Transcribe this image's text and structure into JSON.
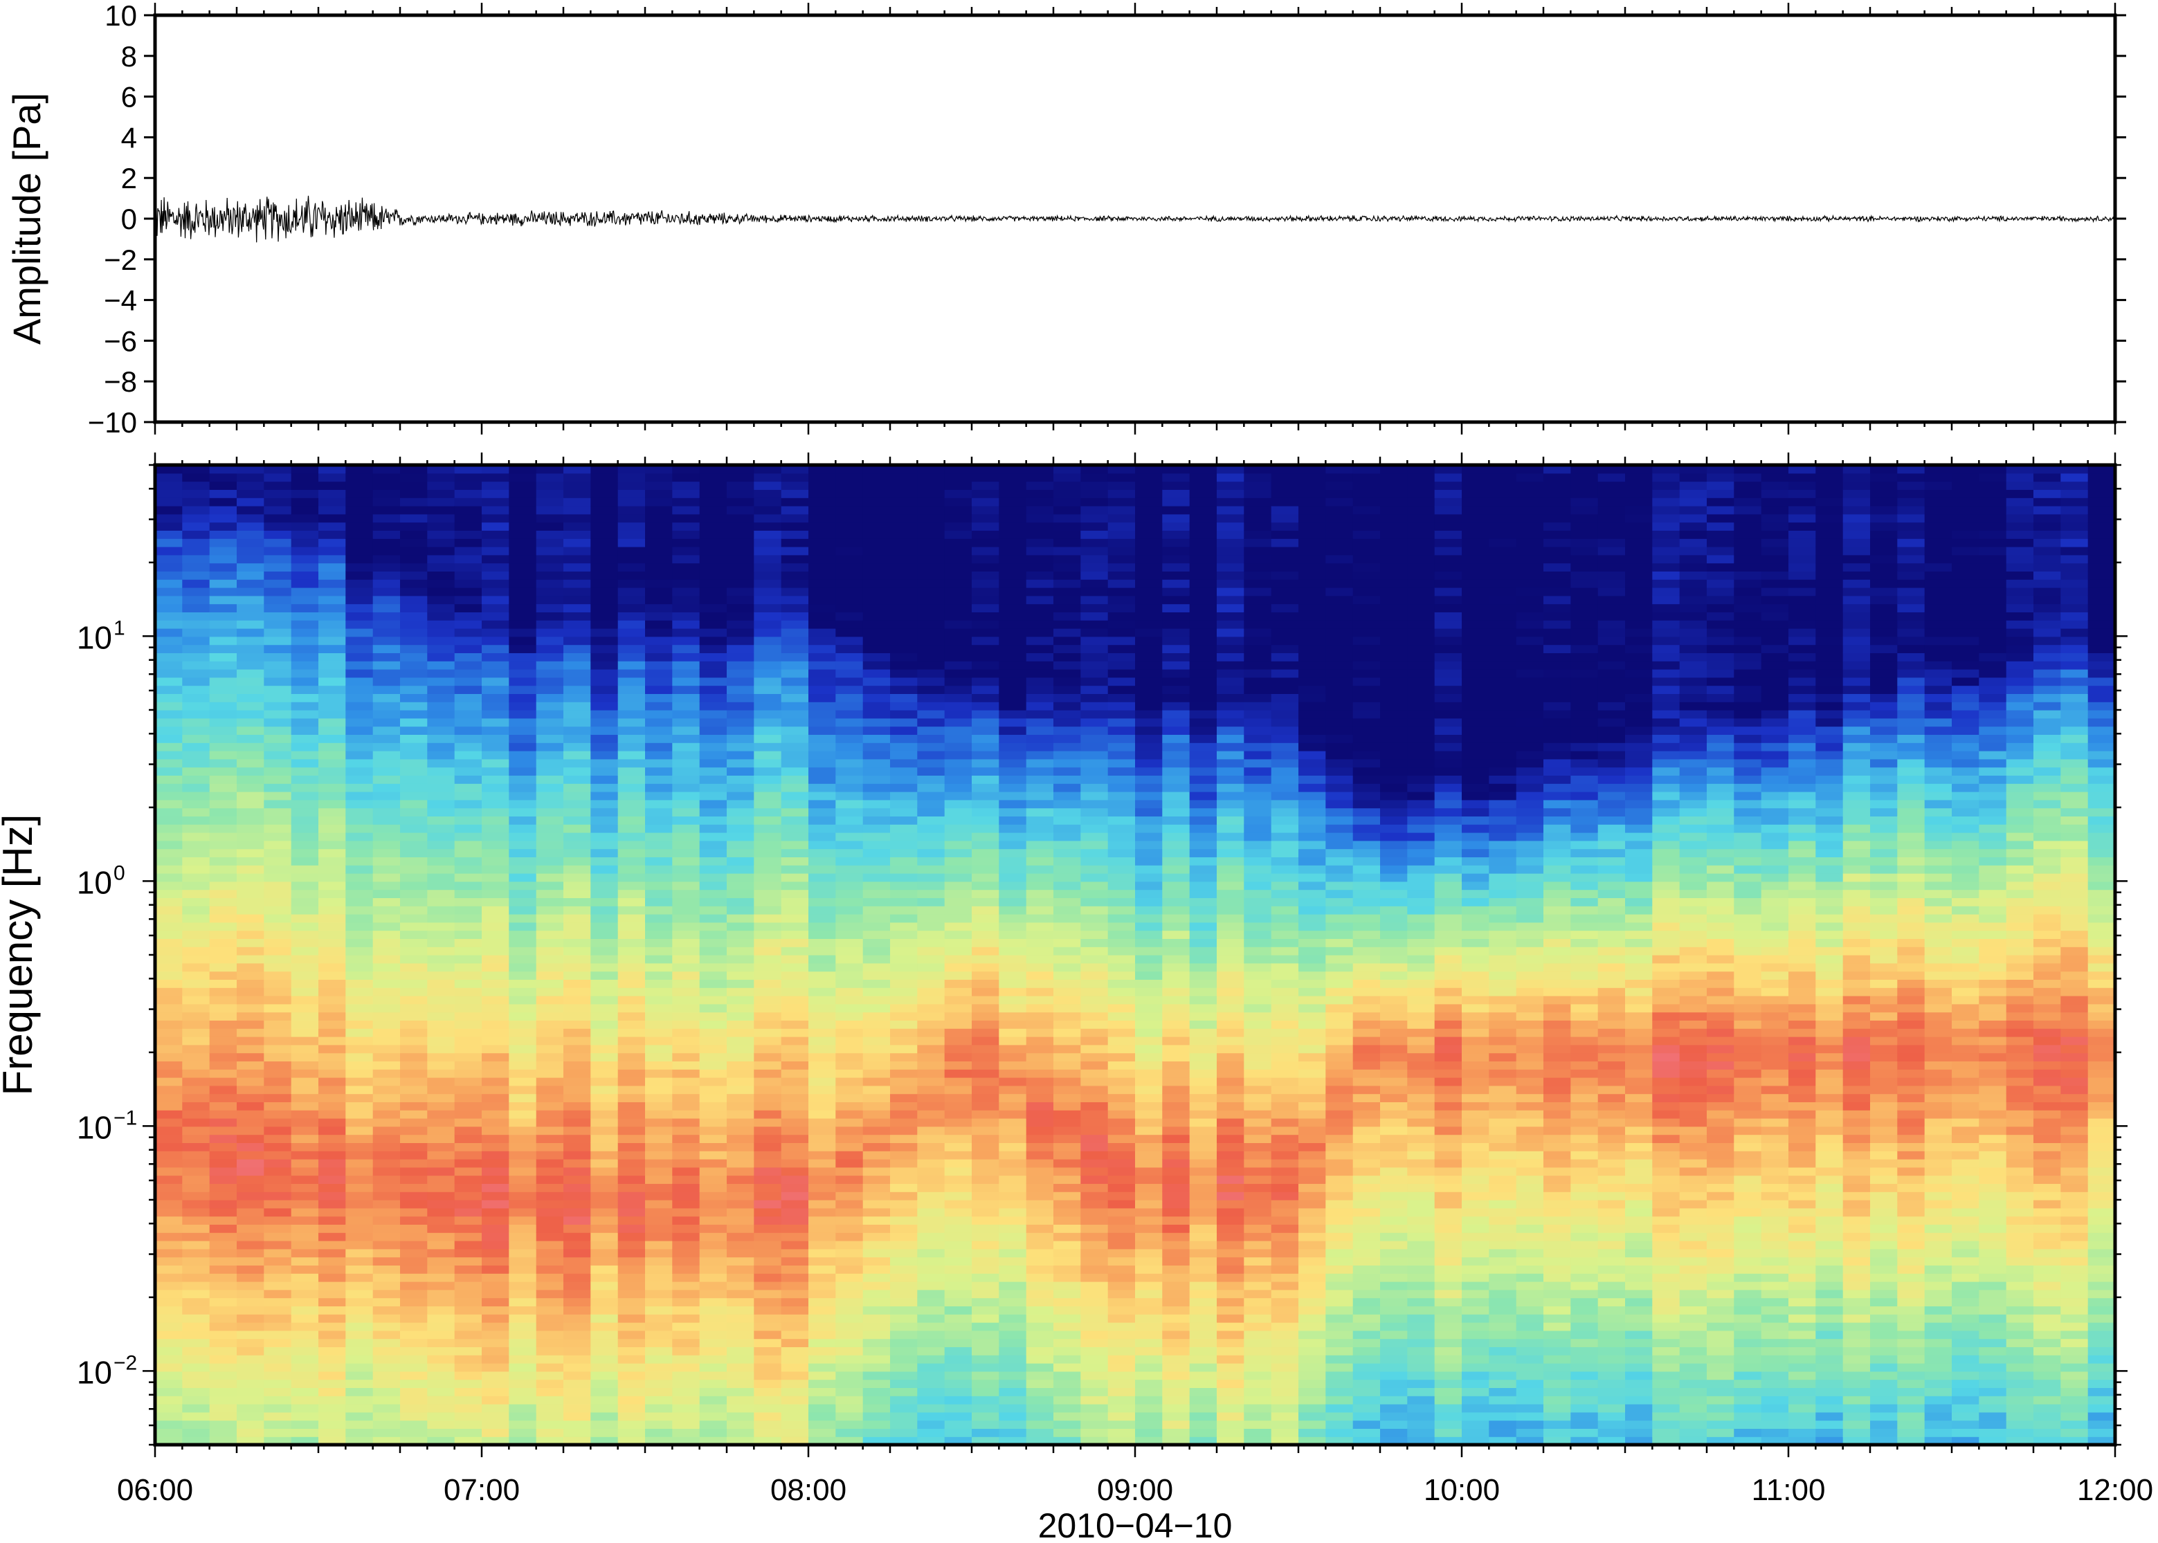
{
  "chart_data": [
    {
      "type": "line",
      "ylabel": "Amplitude [Pa]",
      "ylim": [
        -10,
        10
      ],
      "yticks": [
        -10,
        -8,
        -6,
        -4,
        -2,
        0,
        2,
        4,
        6,
        8,
        10
      ],
      "ytick_labels": [
        "−10",
        "−8",
        "−6",
        "−4",
        "−2",
        "0",
        "2",
        "4",
        "6",
        "8",
        "10"
      ],
      "xlim": [
        "06:00",
        "12:00"
      ],
      "grid": false,
      "envelope": {
        "time": [
          "06:00",
          "06:10",
          "06:20",
          "06:30",
          "06:40",
          "06:45",
          "06:50",
          "07:00",
          "07:10",
          "07:20",
          "07:30",
          "07:40",
          "07:50",
          "08:00",
          "08:20",
          "08:40",
          "09:00",
          "09:20",
          "09:40",
          "10:00",
          "10:20",
          "10:40",
          "11:00",
          "11:20",
          "11:40",
          "12:00"
        ],
        "amplitude": [
          1.4,
          1.2,
          1.3,
          1.4,
          1.0,
          0.5,
          0.25,
          0.35,
          0.45,
          0.45,
          0.5,
          0.4,
          0.25,
          0.2,
          0.18,
          0.15,
          0.15,
          0.15,
          0.18,
          0.15,
          0.15,
          0.15,
          0.15,
          0.15,
          0.15,
          0.15
        ]
      }
    },
    {
      "type": "heatmap",
      "xlabel": "2010−04−10",
      "ylabel": "Frequency [Hz]",
      "y_scale": "log",
      "ylim": [
        0.005,
        50
      ],
      "yticks": [
        0.01,
        0.1,
        1,
        10
      ],
      "ytick_labels": [
        [
          "10",
          "−2"
        ],
        [
          "10",
          "−1"
        ],
        [
          "10",
          "0"
        ],
        [
          "10",
          "1"
        ]
      ],
      "xlim": [
        "06:00",
        "12:00"
      ],
      "xticks": [
        "06:00",
        "07:00",
        "08:00",
        "09:00",
        "10:00",
        "11:00",
        "12:00"
      ],
      "colormap": "rainbow (low power dark navy → blue → cyan → yellow → orange → red/pink high power)",
      "colors": [
        "#0b0a75",
        "#1b33c7",
        "#2f8de6",
        "#55d6e6",
        "#8ee6ad",
        "#d9f28c",
        "#fde07a",
        "#f8a55e",
        "#ee6048",
        "#f27a8c"
      ],
      "description_values": {
        "time": [
          "06:00",
          "06:30",
          "07:00",
          "07:30",
          "08:00",
          "08:30",
          "09:00",
          "09:30",
          "09:40",
          "10:00",
          "10:30",
          "11:00",
          "11:30",
          "12:00"
        ],
        "dark_top_frequency_hz": [
          25,
          22,
          8,
          9,
          10,
          5,
          4,
          4,
          2,
          2,
          3,
          4,
          6,
          8
        ],
        "peak_power_frequency_hz": [
          0.08,
          0.06,
          0.05,
          0.05,
          0.05,
          0.2,
          0.06,
          0.06,
          0.2,
          0.2,
          0.2,
          0.2,
          0.2,
          0.2
        ]
      }
    }
  ],
  "xaxis": {
    "tick_labels": [
      "06:00",
      "07:00",
      "08:00",
      "09:00",
      "10:00",
      "11:00",
      "12:00"
    ],
    "date_label": "2010−04−10"
  }
}
